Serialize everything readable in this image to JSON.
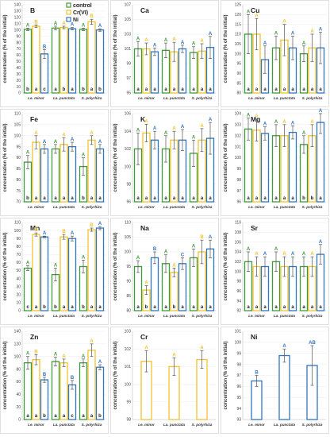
{
  "colors": {
    "control": "#3f9a3b",
    "cr": "#f2c230",
    "ni": "#2f75c0",
    "error": "#555555"
  },
  "y_axis_label": "concentration (% of the initial)",
  "legend": [
    {
      "key": "control",
      "label": "control"
    },
    {
      "key": "cr",
      "label": "Cr(VI)"
    },
    {
      "key": "ni",
      "label": "Ni"
    }
  ],
  "chart_data": [
    {
      "type": "bar",
      "title": "B",
      "categories": [
        "Le. minor",
        "La. punctata",
        "S. polyrhiza"
      ],
      "ylim": [
        0,
        140
      ],
      "ticks": [
        0,
        10,
        20,
        30,
        40,
        50,
        60,
        70,
        80,
        90,
        100,
        110,
        120,
        130,
        140
      ],
      "series": [
        {
          "key": "control",
          "values": [
            101,
            103,
            101
          ],
          "errors": [
            2,
            3,
            2
          ],
          "letters": [
            "A",
            "A",
            "A"
          ],
          "low_letters": [
            "b",
            "a",
            "b"
          ]
        },
        {
          "key": "cr",
          "values": [
            106,
            104,
            113
          ],
          "errors": [
            2,
            2,
            4
          ],
          "letters": [
            "B",
            "A",
            "B"
          ],
          "low_letters": [
            "a",
            "b",
            "a"
          ]
        },
        {
          "key": "ni",
          "values": [
            62,
            102,
            100
          ],
          "errors": [
            7,
            2,
            2
          ],
          "letters": [
            "B",
            "A",
            "A"
          ],
          "low_letters": [
            "c",
            "a",
            "b"
          ]
        }
      ]
    },
    {
      "type": "bar",
      "title": "Ca",
      "categories": [
        "Le. minor",
        "La. punctata",
        "S. polyrhiza"
      ],
      "ylim": [
        95,
        107
      ],
      "ticks": [
        95,
        97,
        99,
        101,
        103,
        105,
        107
      ],
      "series": [
        {
          "key": "control",
          "values": [
            101,
            100.8,
            100.5
          ],
          "errors": [
            1,
            1,
            0.8
          ],
          "letters": [
            "A",
            "A",
            "A"
          ],
          "low_letters": [
            "a",
            "a",
            "a"
          ]
        },
        {
          "key": "cr",
          "values": [
            101,
            100.6,
            100.7
          ],
          "errors": [
            0.8,
            1.3,
            1
          ],
          "letters": [
            "A",
            "A",
            "A"
          ],
          "low_letters": [
            "a",
            "a",
            "a"
          ]
        },
        {
          "key": "ni",
          "values": [
            100.6,
            101,
            101.2
          ],
          "errors": [
            0.5,
            0.5,
            1.5
          ],
          "letters": [
            "A",
            "A",
            "A"
          ],
          "low_letters": [
            "a",
            "a",
            "a"
          ]
        }
      ]
    },
    {
      "type": "bar",
      "title": "Cu",
      "categories": [
        "Le. minor",
        "La. punctata",
        "S. polyrhiza"
      ],
      "ylim": [
        80,
        125
      ],
      "ticks": [
        80,
        85,
        90,
        95,
        100,
        105,
        110,
        115,
        120,
        125
      ],
      "series": [
        {
          "key": "control",
          "values": [
            110,
            103,
            100
          ],
          "errors": [
            10,
            6,
            4
          ],
          "letters": [
            "A",
            "A",
            "A"
          ],
          "low_letters": [
            "a",
            "a",
            "a"
          ]
        },
        {
          "key": "cr",
          "values": [
            110,
            107,
            103
          ],
          "errors": [
            8,
            8,
            7
          ],
          "letters": [
            "A",
            "A",
            "A"
          ],
          "low_letters": [
            "a",
            "a",
            "a"
          ]
        },
        {
          "key": "ni",
          "values": [
            97,
            103,
            103
          ],
          "errors": [
            7,
            6,
            8
          ],
          "letters": [
            "A",
            "A",
            "A"
          ],
          "low_letters": [
            "a",
            "a",
            "a"
          ]
        }
      ]
    },
    {
      "type": "bar",
      "title": "Fe",
      "categories": [
        "Le. minor",
        "La. punctata",
        "S. polyrhiza"
      ],
      "ylim": [
        70,
        110
      ],
      "ticks": [
        70,
        75,
        80,
        85,
        90,
        95,
        100,
        105,
        110
      ],
      "series": [
        {
          "key": "control",
          "values": [
            88,
            94,
            86
          ],
          "errors": [
            3,
            2,
            4
          ],
          "letters": [
            "A",
            "A",
            "A"
          ],
          "low_letters": [
            "b",
            "a",
            "b"
          ]
        },
        {
          "key": "cr",
          "values": [
            97,
            96,
            98
          ],
          "errors": [
            3,
            3,
            2
          ],
          "letters": [
            "A",
            "A",
            "A"
          ],
          "low_letters": [
            "a",
            "a",
            "a"
          ]
        },
        {
          "key": "ni",
          "values": [
            94,
            95,
            94
          ],
          "errors": [
            2,
            2,
            2
          ],
          "letters": [
            "A",
            "A",
            "A"
          ],
          "low_letters": [
            "a",
            "a",
            "a"
          ]
        }
      ]
    },
    {
      "type": "bar",
      "title": "K",
      "categories": [
        "Le. minor",
        "La. punctata",
        "S. polyrhiza"
      ],
      "ylim": [
        96,
        106
      ],
      "ticks": [
        96,
        98,
        100,
        102,
        104,
        106
      ],
      "series": [
        {
          "key": "control",
          "values": [
            102,
            102,
            101.5
          ],
          "errors": [
            1.8,
            1.5,
            1.5
          ],
          "letters": [
            "A",
            "A",
            "A"
          ],
          "low_letters": [
            "a",
            "a",
            "a"
          ]
        },
        {
          "key": "cr",
          "values": [
            103.8,
            103,
            103
          ],
          "errors": [
            1,
            1,
            1.3
          ],
          "letters": [
            "A",
            "A",
            "A"
          ],
          "low_letters": [
            "a",
            "a",
            "a"
          ]
        },
        {
          "key": "ni",
          "values": [
            103,
            103,
            103.2
          ],
          "errors": [
            1,
            1.2,
            1.8
          ],
          "letters": [
            "A",
            "A",
            "A"
          ],
          "low_letters": [
            "a",
            "a",
            "a"
          ]
        }
      ]
    },
    {
      "type": "bar",
      "title": "Mg",
      "categories": [
        "Le. minor",
        "La. punctata",
        "S. polyrhiza"
      ],
      "ylim": [
        96,
        104
      ],
      "ticks": [
        96,
        97,
        98,
        99,
        100,
        101,
        102,
        103,
        104
      ],
      "series": [
        {
          "key": "control",
          "values": [
            102.6,
            102,
            101.2
          ],
          "errors": [
            1,
            1,
            0.8
          ],
          "letters": [
            "A",
            "A",
            "A"
          ],
          "low_letters": [
            "a",
            "a",
            "b"
          ]
        },
        {
          "key": "cr",
          "values": [
            102.5,
            102,
            102
          ],
          "errors": [
            1,
            1,
            1
          ],
          "letters": [
            "A",
            "A",
            "A"
          ],
          "low_letters": [
            "a",
            "a",
            "b"
          ]
        },
        {
          "key": "ni",
          "values": [
            102.2,
            102.3,
            103.2
          ],
          "errors": [
            0.6,
            0.6,
            1
          ],
          "letters": [
            "A",
            "A",
            "A"
          ],
          "low_letters": [
            "a",
            "a",
            "a"
          ]
        }
      ]
    },
    {
      "type": "bar",
      "title": "Mn",
      "categories": [
        "Le. minor",
        "La. punctata",
        "S. polyrhiza"
      ],
      "ylim": [
        0,
        110
      ],
      "ticks": [
        0,
        10,
        20,
        30,
        40,
        50,
        60,
        70,
        80,
        90,
        100,
        110
      ],
      "series": [
        {
          "key": "control",
          "values": [
            53,
            45,
            55
          ],
          "errors": [
            3,
            8,
            8
          ],
          "letters": [
            "A",
            "A",
            "A"
          ],
          "low_letters": [
            "c",
            "b",
            "b"
          ]
        },
        {
          "key": "cr",
          "values": [
            95,
            92,
            101
          ],
          "errors": [
            2,
            3,
            2
          ],
          "letters": [
            "B",
            "B",
            "B"
          ],
          "low_letters": [
            "a",
            "a",
            "a"
          ]
        },
        {
          "key": "ni",
          "values": [
            92,
            90,
            103
          ],
          "errors": [
            1,
            3,
            2
          ],
          "letters": [
            "A",
            "A",
            "A"
          ],
          "low_letters": [
            "b",
            "a",
            "a"
          ]
        }
      ]
    },
    {
      "type": "bar",
      "title": "Na",
      "categories": [
        "Le. minor",
        "La. punctata",
        "S. polyrhiza"
      ],
      "ylim": [
        80,
        110
      ],
      "ticks": [
        80,
        85,
        90,
        95,
        100,
        105,
        110
      ],
      "series": [
        {
          "key": "control",
          "values": [
            95,
            96,
            98
          ],
          "errors": [
            2,
            3,
            3
          ],
          "letters": [
            "A",
            "A",
            "A"
          ],
          "low_letters": [
            "a",
            "a",
            "a"
          ]
        },
        {
          "key": "cr",
          "values": [
            87,
            93,
            100
          ],
          "errors": [
            1.5,
            1.5,
            4
          ],
          "letters": [
            "A",
            "A",
            "B"
          ],
          "low_letters": [
            "b",
            "b",
            "a"
          ]
        },
        {
          "key": "ni",
          "values": [
            98,
            96,
            101
          ],
          "errors": [
            2,
            2,
            3
          ],
          "letters": [
            "B",
            "C",
            "A"
          ],
          "low_letters": [
            "a",
            "a",
            "a"
          ]
        }
      ]
    },
    {
      "type": "bar",
      "title": "Sr",
      "categories": [
        "Le. minor",
        "La. punctata",
        "S. polyrhiza"
      ],
      "ylim": [
        92,
        110
      ],
      "ticks": [
        92,
        94,
        96,
        98,
        100,
        102,
        104,
        106,
        108,
        110
      ],
      "series": [
        {
          "key": "control",
          "values": [
            102,
            102,
            101
          ],
          "errors": [
            2,
            2,
            2
          ],
          "letters": [
            "A",
            "A",
            "A"
          ],
          "low_letters": [
            "a",
            "a",
            "a"
          ]
        },
        {
          "key": "cr",
          "values": [
            101,
            101,
            101
          ],
          "errors": [
            2,
            2,
            2
          ],
          "letters": [
            "A",
            "A",
            "A"
          ],
          "low_letters": [
            "a",
            "a",
            "a"
          ]
        },
        {
          "key": "ni",
          "values": [
            101,
            101,
            103.5
          ],
          "errors": [
            2,
            2,
            2
          ],
          "letters": [
            "A",
            "A",
            "A"
          ],
          "low_letters": [
            "a",
            "a",
            "a"
          ]
        }
      ]
    },
    {
      "type": "bar",
      "title": "Zn",
      "categories": [
        "Le. minor",
        "La. punctata",
        "S. polyrhiza"
      ],
      "ylim": [
        0,
        140
      ],
      "ticks": [
        0,
        20,
        40,
        60,
        80,
        100,
        120,
        140
      ],
      "series": [
        {
          "key": "control",
          "values": [
            90,
            92,
            90
          ],
          "errors": [
            10,
            7,
            6
          ],
          "letters": [
            "A",
            "A",
            "A"
          ],
          "low_letters": [
            "a",
            "a",
            "a"
          ]
        },
        {
          "key": "cr",
          "values": [
            95,
            90,
            110
          ],
          "errors": [
            8,
            6,
            10
          ],
          "letters": [
            "B",
            "A",
            "A"
          ],
          "low_letters": [
            "a",
            "a",
            "a"
          ]
        },
        {
          "key": "ni",
          "values": [
            63,
            55,
            83
          ],
          "errors": [
            4,
            7,
            4
          ],
          "letters": [
            "B",
            "B",
            "A"
          ],
          "low_letters": [
            "b",
            "c",
            "b"
          ]
        }
      ]
    },
    {
      "type": "bar",
      "title": "Cr",
      "categories": [
        "Le. minor",
        "La. punctata",
        "S. polyrhiza"
      ],
      "ylim": [
        98,
        103
      ],
      "ticks": [
        98,
        99,
        100,
        101,
        102,
        103
      ],
      "series": [
        {
          "key": "cr",
          "values": [
            101.3,
            101,
            101.4
          ],
          "errors": [
            0.6,
            0.5,
            0.5
          ],
          "letters": [
            "A",
            "A",
            "A"
          ],
          "low_letters": []
        }
      ]
    },
    {
      "type": "bar",
      "title": "Ni",
      "categories": [
        "Le. minor",
        "La. punctata",
        "S. polyrhiza"
      ],
      "ylim": [
        93,
        101
      ],
      "ticks": [
        93,
        94,
        95,
        96,
        97,
        98,
        99,
        100,
        101
      ],
      "series": [
        {
          "key": "ni",
          "values": [
            96.5,
            98.8,
            97.9
          ],
          "errors": [
            0.5,
            0.6,
            1.8
          ],
          "letters": [
            "B",
            "A",
            "AB"
          ],
          "low_letters": []
        }
      ]
    }
  ]
}
